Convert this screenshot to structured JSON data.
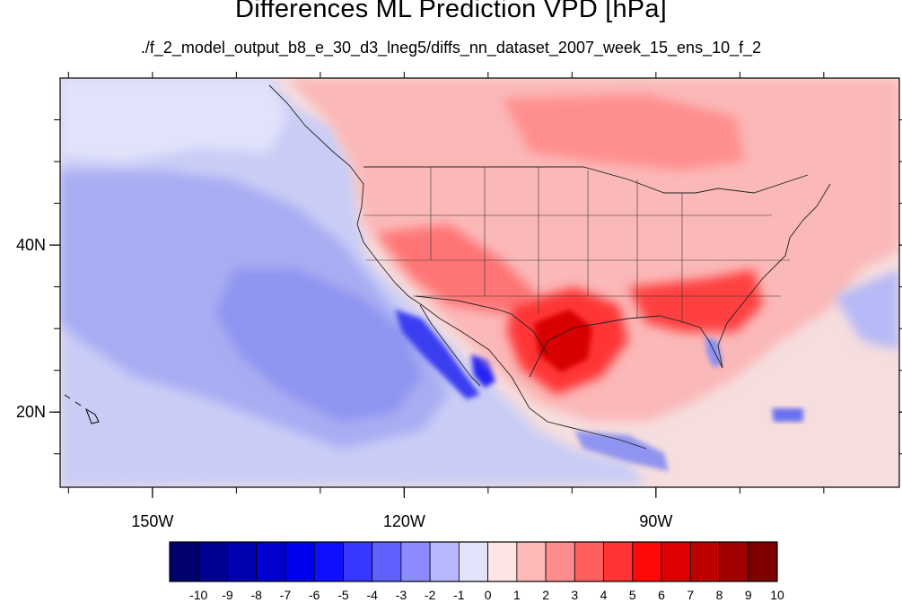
{
  "title": "Differences ML Prediction VPD [hPa]",
  "subtitle": "./f_2_model_output_b8_e_30_d3_lneg5/diffs_nn_dataset_2007_week_15_ens_10_f_2",
  "map": {
    "lon_range": [
      -161,
      -61
    ],
    "lat_range": [
      11,
      60
    ],
    "lon_ticks": [
      {
        "value": -150,
        "label": "150W"
      },
      {
        "value": -120,
        "label": "120W"
      },
      {
        "value": -90,
        "label": "90W"
      }
    ],
    "lat_ticks": [
      {
        "value": 40,
        "label": "40N"
      },
      {
        "value": 20,
        "label": "20N"
      }
    ],
    "colors": {
      "ocean_base": "#d9dcf8",
      "land_base": "#f7d2d2"
    }
  },
  "colorbar": {
    "labels": [
      "-10",
      "-9",
      "-8",
      "-7",
      "-6",
      "-5",
      "-4",
      "-3",
      "-2",
      "-1",
      "0",
      "1",
      "2",
      "3",
      "4",
      "5",
      "6",
      "7",
      "8",
      "9",
      "10"
    ],
    "colors": [
      "#00006e",
      "#000092",
      "#0000b0",
      "#0000cf",
      "#0000ee",
      "#1010ff",
      "#3737ff",
      "#6060ff",
      "#8b8bff",
      "#b7b7ff",
      "#e3e3fb",
      "#ffe4e4",
      "#ffb8b8",
      "#ff8c8c",
      "#ff5e5e",
      "#ff3434",
      "#ff0808",
      "#dd0000",
      "#bf0000",
      "#a00000",
      "#7e0000"
    ]
  }
}
